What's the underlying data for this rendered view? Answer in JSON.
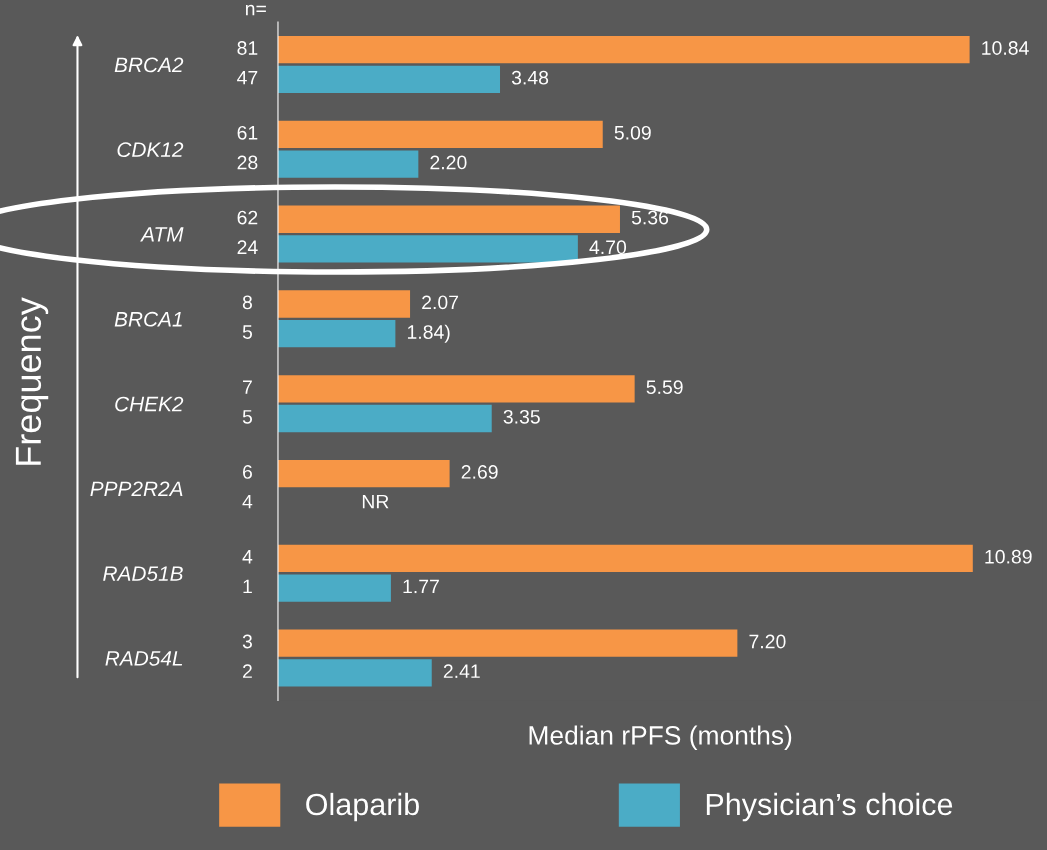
{
  "chart_data": {
    "type": "bar",
    "orientation": "horizontal",
    "xlabel": "Median rPFS (months)",
    "categories": [
      "BRCA2",
      "CDK12",
      "ATM",
      "BRCA1",
      "CHEK2",
      "PPP2R2A",
      "RAD51B",
      "RAD54L"
    ],
    "series": [
      {
        "name": "Olaparib",
        "color": "#f79646",
        "values": [
          10.84,
          5.09,
          5.36,
          2.07,
          5.59,
          2.69,
          10.89,
          7.2
        ],
        "value_labels": [
          "10.84",
          "5.09",
          "5.36",
          "2.07",
          "5.59",
          "2.69",
          "10.89",
          "7.20"
        ]
      },
      {
        "name": "Physician’s choice",
        "color": "#4bacc6",
        "values": [
          3.48,
          2.2,
          4.7,
          1.84,
          3.35,
          null,
          1.77,
          2.41
        ],
        "value_labels": [
          "3.48",
          "2.20",
          "4.70",
          "1.84)",
          "3.35",
          "NR",
          "1.77",
          "2.41"
        ]
      }
    ],
    "annotations": [
      "n=",
      "81",
      "47",
      "61",
      "28",
      "62",
      "24",
      "8",
      "5",
      "7",
      "5",
      "6",
      "4",
      "4",
      "1",
      "3",
      "2",
      "Frequency"
    ],
    "legend": "bottom",
    "grid": false
  }
}
